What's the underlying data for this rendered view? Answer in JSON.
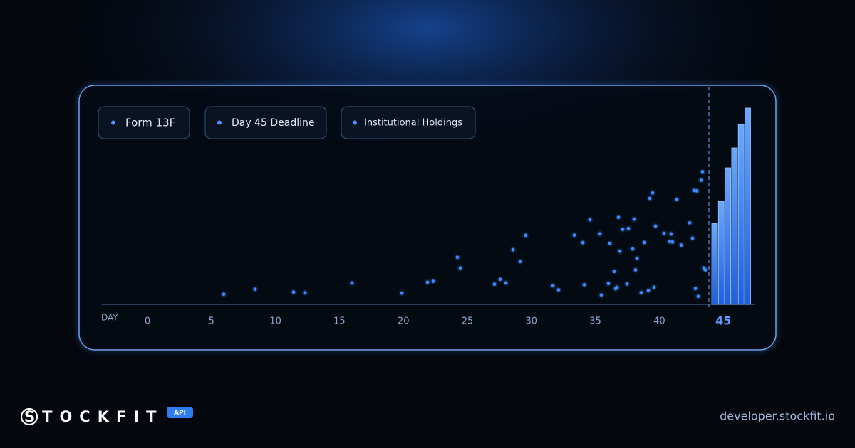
{
  "legend_chips": [
    "Form 13F",
    "Day 45 Deadline",
    "Institutional Holdings"
  ],
  "x_axis": {
    "label": "DAY",
    "ticks": [
      0,
      5,
      10,
      15,
      20,
      25,
      30,
      35,
      40
    ],
    "deadline": 45
  },
  "brand": {
    "name": "STOCKFIT",
    "badge": "API",
    "url": "developer.stockfit.io"
  }
}
